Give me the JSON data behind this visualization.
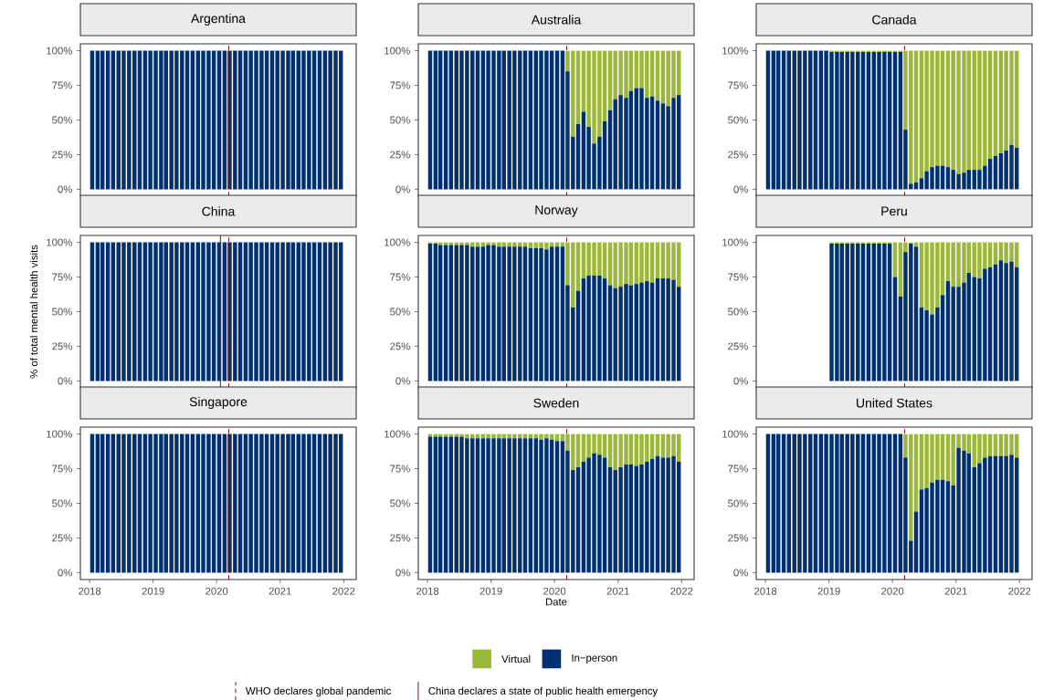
{
  "chart_data": [
    {
      "type": "bar",
      "title": "Argentina",
      "tick_labels": "y",
      "x": [
        "2018-01-16",
        "2018-02-16",
        "2018-03-16",
        "2018-04-16",
        "2018-05-16",
        "2018-06-16",
        "2018-07-16",
        "2018-08-16",
        "2018-09-16",
        "2018-10-16",
        "2018-11-16",
        "2018-12-16",
        "2019-01-16",
        "2019-02-16",
        "2019-03-16",
        "2019-04-16",
        "2019-05-16",
        "2019-06-16",
        "2019-07-16",
        "2019-08-16",
        "2019-09-16",
        "2019-10-16",
        "2019-11-16",
        "2019-12-16",
        "2020-01-16",
        "2020-02-16",
        "2020-03-16",
        "2020-04-16",
        "2020-05-16",
        "2020-06-16",
        "2020-07-16",
        "2020-08-16",
        "2020-09-16",
        "2020-10-16",
        "2020-11-16",
        "2020-12-16",
        "2021-01-16",
        "2021-02-16",
        "2021-03-16",
        "2021-04-16",
        "2021-05-16",
        "2021-06-16",
        "2021-07-16",
        "2021-08-16",
        "2021-09-16",
        "2021-10-16",
        "2021-11-16",
        "2021-12-16"
      ],
      "series": [
        {
          "color": "#00306f",
          "values": [
            100,
            100,
            100,
            100,
            100,
            100,
            100,
            100,
            100,
            100,
            100,
            100,
            100,
            100,
            100,
            100,
            100,
            100,
            100,
            100,
            100,
            100,
            100,
            100,
            100,
            100,
            100,
            100,
            100,
            100,
            100,
            100,
            100,
            100,
            100,
            100,
            100,
            100,
            100,
            100,
            100,
            100,
            100,
            100,
            100,
            100,
            100,
            100
          ]
        }
      ],
      "xlim": [
        "2017-11-09",
        "2022-03-14"
      ],
      "xticks": [
        "2018",
        "2019",
        "2020",
        "2021",
        "2022"
      ],
      "ylim": [
        -5,
        105
      ],
      "yticks": [
        {
          "value": 0,
          "label": "0%"
        },
        {
          "value": 25,
          "label": "25%"
        },
        {
          "value": 50,
          "label": "50%"
        },
        {
          "value": 75,
          "label": "75%"
        },
        {
          "value": 100,
          "label": "100%"
        }
      ],
      "ref_lines": [
        {
          "axis": "x",
          "value": "2020-03-11",
          "line_style": "dashed",
          "color": "#8b1a1a"
        }
      ]
    },
    {
      "type": "bar",
      "stacked": true,
      "title": "Australia",
      "legend": "bottom",
      "tick_labels": "y",
      "x": [
        "2018-01-16",
        "2018-02-16",
        "2018-03-16",
        "2018-04-16",
        "2018-05-16",
        "2018-06-16",
        "2018-07-16",
        "2018-08-16",
        "2018-09-16",
        "2018-10-16",
        "2018-11-16",
        "2018-12-16",
        "2019-01-16",
        "2019-02-16",
        "2019-03-16",
        "2019-04-16",
        "2019-05-16",
        "2019-06-16",
        "2019-07-16",
        "2019-08-16",
        "2019-09-16",
        "2019-10-16",
        "2019-11-16",
        "2019-12-16",
        "2020-01-16",
        "2020-02-16",
        "2020-03-16",
        "2020-04-16",
        "2020-05-16",
        "2020-06-16",
        "2020-07-16",
        "2020-08-16",
        "2020-09-16",
        "2020-10-16",
        "2020-11-16",
        "2020-12-16",
        "2021-01-16",
        "2021-02-16",
        "2021-03-16",
        "2021-04-16",
        "2021-05-16",
        "2021-06-16",
        "2021-07-16",
        "2021-08-16",
        "2021-09-16",
        "2021-10-16",
        "2021-11-16",
        "2021-12-16"
      ],
      "series": [
        {
          "name": "In−person",
          "color": "#00306f",
          "values": [
            100,
            100,
            100,
            100,
            100,
            100,
            100,
            100,
            100,
            100,
            100,
            100,
            100,
            100,
            100,
            100,
            100,
            100,
            100,
            100,
            100,
            100,
            100,
            100,
            100,
            100,
            85,
            38,
            47,
            56,
            45,
            33,
            38,
            49,
            57,
            65,
            68,
            66,
            71,
            73,
            73,
            66,
            67,
            64,
            62,
            60,
            66,
            68
          ]
        },
        {
          "name": "Virtual",
          "color": "#9cb83a",
          "values": [
            0,
            0,
            0,
            0,
            0,
            0,
            0,
            0,
            0,
            0,
            0,
            0,
            0,
            0,
            0,
            0,
            0,
            0,
            0,
            0,
            0,
            0,
            0,
            0,
            0,
            0,
            15,
            62,
            53,
            44,
            55,
            67,
            62,
            51,
            43,
            35,
            32,
            34,
            29,
            27,
            27,
            34,
            33,
            36,
            38,
            40,
            34,
            32
          ]
        }
      ],
      "xlim": [
        "2017-11-09",
        "2022-03-14"
      ],
      "xticks": [
        "2018",
        "2019",
        "2020",
        "2021",
        "2022"
      ],
      "ylim": [
        -5,
        105
      ],
      "yticks": [
        {
          "value": 0,
          "label": "0%"
        },
        {
          "value": 25,
          "label": "25%"
        },
        {
          "value": 50,
          "label": "50%"
        },
        {
          "value": 75,
          "label": "75%"
        },
        {
          "value": 100,
          "label": "100%"
        }
      ],
      "ref_lines": [
        {
          "axis": "x",
          "value": "2020-03-11",
          "line_style": "dashed",
          "color": "#8b1a1a"
        }
      ]
    },
    {
      "type": "bar",
      "stacked": true,
      "title": "Canada",
      "tick_labels": "y",
      "x": [
        "2018-01-16",
        "2018-02-16",
        "2018-03-16",
        "2018-04-16",
        "2018-05-16",
        "2018-06-16",
        "2018-07-16",
        "2018-08-16",
        "2018-09-16",
        "2018-10-16",
        "2018-11-16",
        "2018-12-16",
        "2019-01-16",
        "2019-02-16",
        "2019-03-16",
        "2019-04-16",
        "2019-05-16",
        "2019-06-16",
        "2019-07-16",
        "2019-08-16",
        "2019-09-16",
        "2019-10-16",
        "2019-11-16",
        "2019-12-16",
        "2020-01-16",
        "2020-02-16",
        "2020-03-16",
        "2020-04-16",
        "2020-05-16",
        "2020-06-16",
        "2020-07-16",
        "2020-08-16",
        "2020-09-16",
        "2020-10-16",
        "2020-11-16",
        "2020-12-16",
        "2021-01-16",
        "2021-02-16",
        "2021-03-16",
        "2021-04-16",
        "2021-05-16",
        "2021-06-16",
        "2021-07-16",
        "2021-08-16",
        "2021-09-16",
        "2021-10-16",
        "2021-11-16",
        "2021-12-16"
      ],
      "series": [
        {
          "color": "#00306f",
          "values": [
            100,
            100,
            100,
            100,
            100,
            100,
            100,
            100,
            100,
            100,
            100,
            100,
            99,
            99,
            99,
            99,
            99,
            99,
            99,
            99,
            99,
            99,
            99,
            99,
            99,
            99,
            43,
            4,
            5,
            8,
            13,
            16,
            17,
            17,
            16,
            14,
            11,
            12,
            14,
            14,
            14,
            17,
            22,
            24,
            26,
            28,
            32,
            30
          ]
        },
        {
          "color": "#9cb83a",
          "values": [
            0,
            0,
            0,
            0,
            0,
            0,
            0,
            0,
            0,
            0,
            0,
            0,
            1,
            1,
            1,
            1,
            1,
            1,
            1,
            1,
            1,
            1,
            1,
            1,
            1,
            1,
            57,
            96,
            95,
            92,
            87,
            84,
            83,
            83,
            84,
            86,
            89,
            88,
            86,
            86,
            86,
            83,
            78,
            76,
            74,
            72,
            68,
            70
          ]
        }
      ],
      "xlim": [
        "2017-11-09",
        "2022-03-14"
      ],
      "xticks": [
        "2018",
        "2019",
        "2020",
        "2021",
        "2022"
      ],
      "ylim": [
        -5,
        105
      ],
      "yticks": [
        {
          "value": 0,
          "label": "0%"
        },
        {
          "value": 25,
          "label": "25%"
        },
        {
          "value": 50,
          "label": "50%"
        },
        {
          "value": 75,
          "label": "75%"
        },
        {
          "value": 100,
          "label": "100%"
        }
      ],
      "ref_lines": [
        {
          "axis": "x",
          "value": "2020-03-11",
          "line_style": "dashed",
          "color": "#8b1a1a"
        }
      ]
    },
    {
      "type": "bar",
      "title": "China",
      "legend": "bottom",
      "tick_labels": "y",
      "ylabel": "% of total mental health visits",
      "x": [
        "2018-01-16",
        "2018-02-16",
        "2018-03-16",
        "2018-04-16",
        "2018-05-16",
        "2018-06-16",
        "2018-07-16",
        "2018-08-16",
        "2018-09-16",
        "2018-10-16",
        "2018-11-16",
        "2018-12-16",
        "2019-01-16",
        "2019-02-16",
        "2019-03-16",
        "2019-04-16",
        "2019-05-16",
        "2019-06-16",
        "2019-07-16",
        "2019-08-16",
        "2019-09-16",
        "2019-10-16",
        "2019-11-16",
        "2019-12-16",
        "2020-01-16",
        "2020-02-16",
        "2020-03-16",
        "2020-04-16",
        "2020-05-16",
        "2020-06-16",
        "2020-07-16",
        "2020-08-16",
        "2020-09-16",
        "2020-10-16",
        "2020-11-16",
        "2020-12-16",
        "2021-01-16",
        "2021-02-16",
        "2021-03-16",
        "2021-04-16",
        "2021-05-16",
        "2021-06-16",
        "2021-07-16",
        "2021-08-16",
        "2021-09-16",
        "2021-10-16",
        "2021-11-16",
        "2021-12-16"
      ],
      "series": [
        {
          "color": "#00306f",
          "values": [
            100,
            100,
            100,
            100,
            100,
            100,
            100,
            100,
            100,
            100,
            100,
            100,
            100,
            100,
            100,
            100,
            100,
            100,
            100,
            100,
            100,
            100,
            100,
            100,
            100,
            100,
            100,
            100,
            100,
            100,
            100,
            100,
            100,
            100,
            100,
            100,
            100,
            100,
            100,
            100,
            100,
            100,
            100,
            100,
            100,
            100,
            100,
            100
          ]
        }
      ],
      "xlim": [
        "2017-11-09",
        "2022-03-14"
      ],
      "xticks": [
        "2018",
        "2019",
        "2020",
        "2021",
        "2022"
      ],
      "ylim": [
        -5,
        105
      ],
      "yticks": [
        {
          "value": 0,
          "label": "0%"
        },
        {
          "value": 25,
          "label": "25%"
        },
        {
          "value": 50,
          "label": "50%"
        },
        {
          "value": 75,
          "label": "75%"
        },
        {
          "value": 100,
          "label": "100%"
        }
      ],
      "ref_lines": [
        {
          "axis": "x",
          "value": "2020-03-11",
          "line_style": "dashed",
          "color": "#8b1a1a",
          "label": "WHO declares global pandemic"
        },
        {
          "axis": "x",
          "value": "2020-01-23",
          "line_style": "solid",
          "color": "#8b1a1a",
          "label": "China declares a state of public health emergency"
        }
      ]
    },
    {
      "type": "bar",
      "stacked": true,
      "title": "Norway",
      "tick_labels": "y",
      "x": [
        "2018-01-16",
        "2018-02-16",
        "2018-03-16",
        "2018-04-16",
        "2018-05-16",
        "2018-06-16",
        "2018-07-16",
        "2018-08-16",
        "2018-09-16",
        "2018-10-16",
        "2018-11-16",
        "2018-12-16",
        "2019-01-16",
        "2019-02-16",
        "2019-03-16",
        "2019-04-16",
        "2019-05-16",
        "2019-06-16",
        "2019-07-16",
        "2019-08-16",
        "2019-09-16",
        "2019-10-16",
        "2019-11-16",
        "2019-12-16",
        "2020-01-16",
        "2020-02-16",
        "2020-03-16",
        "2020-04-16",
        "2020-05-16",
        "2020-06-16",
        "2020-07-16",
        "2020-08-16",
        "2020-09-16",
        "2020-10-16",
        "2020-11-16",
        "2020-12-16",
        "2021-01-16",
        "2021-02-16",
        "2021-03-16",
        "2021-04-16",
        "2021-05-16",
        "2021-06-16",
        "2021-07-16",
        "2021-08-16",
        "2021-09-16",
        "2021-10-16",
        "2021-11-16",
        "2021-12-16"
      ],
      "series": [
        {
          "color": "#00306f",
          "values": [
            99,
            99,
            98,
            98,
            98,
            98,
            98,
            98,
            97,
            97,
            97,
            98,
            98,
            97,
            97,
            97,
            97,
            97,
            97,
            96,
            96,
            96,
            95,
            97,
            97,
            97,
            69,
            53,
            65,
            74,
            76,
            76,
            76,
            74,
            69,
            67,
            68,
            70,
            69,
            70,
            71,
            72,
            71,
            74,
            74,
            74,
            73,
            68
          ]
        },
        {
          "color": "#9cb83a",
          "values": [
            1,
            1,
            2,
            2,
            2,
            2,
            2,
            2,
            3,
            3,
            3,
            2,
            2,
            3,
            3,
            3,
            3,
            3,
            3,
            4,
            4,
            4,
            5,
            3,
            3,
            3,
            31,
            47,
            35,
            26,
            24,
            24,
            24,
            26,
            31,
            33,
            32,
            30,
            31,
            30,
            29,
            28,
            29,
            26,
            26,
            26,
            27,
            32
          ]
        }
      ],
      "xlim": [
        "2017-11-09",
        "2022-03-14"
      ],
      "xticks": [
        "2018",
        "2019",
        "2020",
        "2021",
        "2022"
      ],
      "ylim": [
        -5,
        105
      ],
      "yticks": [
        {
          "value": 0,
          "label": "0%"
        },
        {
          "value": 25,
          "label": "25%"
        },
        {
          "value": 50,
          "label": "50%"
        },
        {
          "value": 75,
          "label": "75%"
        },
        {
          "value": 100,
          "label": "100%"
        }
      ],
      "ref_lines": [
        {
          "axis": "x",
          "value": "2020-03-11",
          "line_style": "dashed",
          "color": "#8b1a1a"
        }
      ]
    },
    {
      "type": "bar",
      "stacked": true,
      "title": "Peru",
      "tick_labels": "y",
      "x": [
        "2019-01-16",
        "2019-02-16",
        "2019-03-16",
        "2019-04-16",
        "2019-05-16",
        "2019-06-16",
        "2019-07-16",
        "2019-08-16",
        "2019-09-16",
        "2019-10-16",
        "2019-11-16",
        "2019-12-16",
        "2020-01-16",
        "2020-02-16",
        "2020-03-16",
        "2020-04-16",
        "2020-05-16",
        "2020-06-16",
        "2020-07-16",
        "2020-08-16",
        "2020-09-16",
        "2020-10-16",
        "2020-11-16",
        "2020-12-16",
        "2021-01-16",
        "2021-02-16",
        "2021-03-16",
        "2021-04-16",
        "2021-05-16",
        "2021-06-16",
        "2021-07-16",
        "2021-08-16",
        "2021-09-16",
        "2021-10-16",
        "2021-11-16",
        "2021-12-16"
      ],
      "series": [
        {
          "color": "#00306f",
          "values": [
            99,
            99,
            99,
            99,
            99,
            99,
            99,
            99,
            99,
            99,
            99,
            99,
            75,
            61,
            93,
            99,
            97,
            53,
            51,
            48,
            53,
            62,
            72,
            68,
            68,
            71,
            78,
            75,
            74,
            81,
            82,
            84,
            87,
            85,
            86,
            82
          ]
        },
        {
          "color": "#9cb83a",
          "values": [
            1,
            1,
            1,
            1,
            1,
            1,
            1,
            1,
            1,
            1,
            1,
            1,
            25,
            39,
            7,
            1,
            3,
            47,
            49,
            52,
            47,
            38,
            28,
            32,
            32,
            29,
            22,
            25,
            26,
            19,
            18,
            16,
            13,
            15,
            14,
            18
          ]
        }
      ],
      "xlim": [
        "2017-11-09",
        "2022-03-14"
      ],
      "xticks": [
        "2018",
        "2019",
        "2020",
        "2021",
        "2022"
      ],
      "ylim": [
        -5,
        105
      ],
      "yticks": [
        {
          "value": 0,
          "label": "0%"
        },
        {
          "value": 25,
          "label": "25%"
        },
        {
          "value": 50,
          "label": "50%"
        },
        {
          "value": 75,
          "label": "75%"
        },
        {
          "value": 100,
          "label": "100%"
        }
      ],
      "ref_lines": [
        {
          "axis": "x",
          "value": "2020-03-11",
          "line_style": "dashed",
          "color": "#8b1a1a"
        }
      ]
    },
    {
      "type": "bar",
      "title": "Singapore",
      "x": [
        "2018-01-16",
        "2018-02-16",
        "2018-03-16",
        "2018-04-16",
        "2018-05-16",
        "2018-06-16",
        "2018-07-16",
        "2018-08-16",
        "2018-09-16",
        "2018-10-16",
        "2018-11-16",
        "2018-12-16",
        "2019-01-16",
        "2019-02-16",
        "2019-03-16",
        "2019-04-16",
        "2019-05-16",
        "2019-06-16",
        "2019-07-16",
        "2019-08-16",
        "2019-09-16",
        "2019-10-16",
        "2019-11-16",
        "2019-12-16",
        "2020-01-16",
        "2020-02-16",
        "2020-03-16",
        "2020-04-16",
        "2020-05-16",
        "2020-06-16",
        "2020-07-16",
        "2020-08-16",
        "2020-09-16",
        "2020-10-16",
        "2020-11-16",
        "2020-12-16",
        "2021-01-16",
        "2021-02-16",
        "2021-03-16",
        "2021-04-16",
        "2021-05-16",
        "2021-06-16",
        "2021-07-16",
        "2021-08-16",
        "2021-09-16",
        "2021-10-16",
        "2021-11-16",
        "2021-12-16"
      ],
      "series": [
        {
          "color": "#00306f",
          "values": [
            100,
            100,
            100,
            100,
            100,
            100,
            100,
            100,
            100,
            100,
            100,
            100,
            100,
            100,
            100,
            100,
            100,
            100,
            100,
            100,
            100,
            100,
            100,
            100,
            100,
            100,
            100,
            100,
            100,
            100,
            100,
            100,
            100,
            100,
            100,
            100,
            100,
            100,
            100,
            100,
            100,
            100,
            100,
            100,
            100,
            100,
            100,
            100
          ]
        }
      ],
      "xlim": [
        "2017-11-09",
        "2022-03-14"
      ],
      "xticks": [
        "2018",
        "2019",
        "2020",
        "2021",
        "2022"
      ],
      "ylim": [
        -5,
        105
      ],
      "yticks": [
        {
          "value": 0,
          "label": "0%"
        },
        {
          "value": 25,
          "label": "25%"
        },
        {
          "value": 50,
          "label": "50%"
        },
        {
          "value": 75,
          "label": "75%"
        },
        {
          "value": 100,
          "label": "100%"
        }
      ],
      "ref_lines": [
        {
          "axis": "x",
          "value": "2020-03-11",
          "line_style": "dashed",
          "color": "#8b1a1a"
        }
      ]
    },
    {
      "type": "bar",
      "stacked": true,
      "title": "Sweden",
      "xlabel": "Date",
      "x": [
        "2018-01-16",
        "2018-02-16",
        "2018-03-16",
        "2018-04-16",
        "2018-05-16",
        "2018-06-16",
        "2018-07-16",
        "2018-08-16",
        "2018-09-16",
        "2018-10-16",
        "2018-11-16",
        "2018-12-16",
        "2019-01-16",
        "2019-02-16",
        "2019-03-16",
        "2019-04-16",
        "2019-05-16",
        "2019-06-16",
        "2019-07-16",
        "2019-08-16",
        "2019-09-16",
        "2019-10-16",
        "2019-11-16",
        "2019-12-16",
        "2020-01-16",
        "2020-02-16",
        "2020-03-16",
        "2020-04-16",
        "2020-05-16",
        "2020-06-16",
        "2020-07-16",
        "2020-08-16",
        "2020-09-16",
        "2020-10-16",
        "2020-11-16",
        "2020-12-16",
        "2021-01-16",
        "2021-02-16",
        "2021-03-16",
        "2021-04-16",
        "2021-05-16",
        "2021-06-16",
        "2021-07-16",
        "2021-08-16",
        "2021-09-16",
        "2021-10-16",
        "2021-11-16",
        "2021-12-16"
      ],
      "series": [
        {
          "color": "#00306f",
          "values": [
            98,
            98,
            98,
            98,
            98,
            98,
            98,
            97,
            97,
            97,
            97,
            97,
            97,
            97,
            97,
            97,
            97,
            97,
            97,
            97,
            97,
            96,
            97,
            96,
            95,
            95,
            88,
            74,
            76,
            80,
            83,
            86,
            85,
            83,
            76,
            74,
            76,
            78,
            78,
            77,
            78,
            80,
            82,
            84,
            83,
            83,
            84,
            80
          ]
        },
        {
          "color": "#9cb83a",
          "values": [
            2,
            2,
            2,
            2,
            2,
            2,
            2,
            3,
            3,
            3,
            3,
            3,
            3,
            3,
            3,
            3,
            3,
            3,
            3,
            3,
            3,
            4,
            3,
            4,
            5,
            5,
            12,
            26,
            24,
            20,
            17,
            14,
            15,
            17,
            24,
            26,
            24,
            22,
            22,
            23,
            22,
            20,
            18,
            16,
            17,
            17,
            16,
            20
          ]
        }
      ],
      "xlim": [
        "2017-11-09",
        "2022-03-14"
      ],
      "xticks": [
        "2018",
        "2019",
        "2020",
        "2021",
        "2022"
      ],
      "ylim": [
        -5,
        105
      ],
      "yticks": [
        {
          "value": 0,
          "label": "0%"
        },
        {
          "value": 25,
          "label": "25%"
        },
        {
          "value": 50,
          "label": "50%"
        },
        {
          "value": 75,
          "label": "75%"
        },
        {
          "value": 100,
          "label": "100%"
        }
      ],
      "ref_lines": [
        {
          "axis": "x",
          "value": "2020-03-11",
          "line_style": "dashed",
          "color": "#8b1a1a"
        }
      ]
    },
    {
      "type": "bar",
      "stacked": true,
      "title": "United States",
      "x": [
        "2018-01-16",
        "2018-02-16",
        "2018-03-16",
        "2018-04-16",
        "2018-05-16",
        "2018-06-16",
        "2018-07-16",
        "2018-08-16",
        "2018-09-16",
        "2018-10-16",
        "2018-11-16",
        "2018-12-16",
        "2019-01-16",
        "2019-02-16",
        "2019-03-16",
        "2019-04-16",
        "2019-05-16",
        "2019-06-16",
        "2019-07-16",
        "2019-08-16",
        "2019-09-16",
        "2019-10-16",
        "2019-11-16",
        "2019-12-16",
        "2020-01-16",
        "2020-02-16",
        "2020-03-16",
        "2020-04-16",
        "2020-05-16",
        "2020-06-16",
        "2020-07-16",
        "2020-08-16",
        "2020-09-16",
        "2020-10-16",
        "2020-11-16",
        "2020-12-16",
        "2021-01-16",
        "2021-02-16",
        "2021-03-16",
        "2021-04-16",
        "2021-05-16",
        "2021-06-16",
        "2021-07-16",
        "2021-08-16",
        "2021-09-16",
        "2021-10-16",
        "2021-11-16",
        "2021-12-16"
      ],
      "series": [
        {
          "color": "#00306f",
          "values": [
            100,
            100,
            100,
            100,
            100,
            100,
            100,
            100,
            100,
            100,
            100,
            100,
            100,
            100,
            100,
            100,
            100,
            100,
            100,
            100,
            100,
            100,
            100,
            100,
            100,
            100,
            83,
            23,
            44,
            60,
            61,
            65,
            67,
            67,
            66,
            63,
            90,
            88,
            86,
            76,
            79,
            83,
            84,
            84,
            84,
            84,
            85,
            83
          ]
        },
        {
          "color": "#9cb83a",
          "values": [
            0,
            0,
            0,
            0,
            0,
            0,
            0,
            0,
            0,
            0,
            0,
            0,
            0,
            0,
            0,
            0,
            0,
            0,
            0,
            0,
            0,
            0,
            0,
            0,
            0,
            0,
            17,
            77,
            56,
            40,
            39,
            35,
            33,
            33,
            34,
            37,
            10,
            12,
            14,
            24,
            21,
            17,
            16,
            16,
            16,
            16,
            15,
            17
          ]
        }
      ],
      "xlim": [
        "2017-11-09",
        "2022-03-14"
      ],
      "xticks": [
        "2018",
        "2019",
        "2020",
        "2021",
        "2022"
      ],
      "ylim": [
        -5,
        105
      ],
      "yticks": [
        {
          "value": 0,
          "label": "0%"
        },
        {
          "value": 25,
          "label": "25%"
        },
        {
          "value": 50,
          "label": "50%"
        },
        {
          "value": 75,
          "label": "75%"
        },
        {
          "value": 100,
          "label": "100%"
        }
      ],
      "ref_lines": [
        {
          "axis": "x",
          "value": "2020-03-11",
          "line_style": "dashed",
          "color": "#8b1a1a"
        }
      ]
    }
  ]
}
